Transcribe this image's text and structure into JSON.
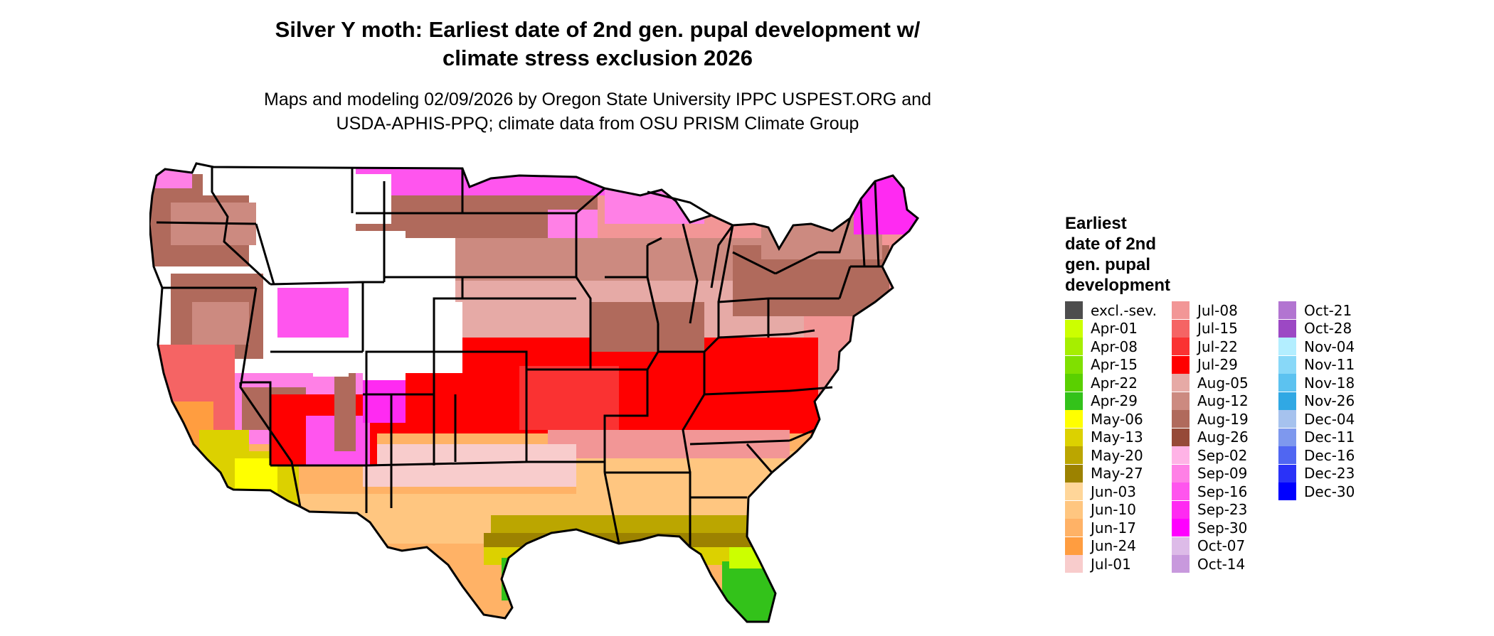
{
  "title": {
    "line1": "Silver Y moth: Earliest date of 2nd gen. pupal development w/",
    "line2": "climate stress exclusion 2026"
  },
  "subtitle": {
    "line1": "Maps and modeling 02/09/2026 by Oregon State University IPPC USPEST.ORG and",
    "line2": "USDA-APHIS-PPQ; climate data from OSU PRISM Climate Group"
  },
  "legend": {
    "title_lines": [
      "Earliest",
      "date of 2nd",
      "gen. pupal",
      "development"
    ],
    "columns": [
      [
        {
          "label": "excl.-sev.",
          "color": "#4d4d4d"
        },
        {
          "label": "Apr-01",
          "color": "#ccff00"
        },
        {
          "label": "Apr-08",
          "color": "#a6ee00"
        },
        {
          "label": "Apr-15",
          "color": "#80e000"
        },
        {
          "label": "Apr-22",
          "color": "#5ad000"
        },
        {
          "label": "Apr-29",
          "color": "#33c21a"
        },
        {
          "label": "May-06",
          "color": "#ffff00"
        },
        {
          "label": "May-13",
          "color": "#dcd100"
        },
        {
          "label": "May-20",
          "color": "#bba600"
        },
        {
          "label": "May-27",
          "color": "#9c8200"
        },
        {
          "label": "Jun-03",
          "color": "#ffd699"
        },
        {
          "label": "Jun-10",
          "color": "#ffc680"
        },
        {
          "label": "Jun-17",
          "color": "#ffb266"
        },
        {
          "label": "Jun-24",
          "color": "#ff9d40"
        },
        {
          "label": "Jul-01",
          "color": "#f8cccc"
        }
      ],
      [
        {
          "label": "Jul-08",
          "color": "#f29696"
        },
        {
          "label": "Jul-15",
          "color": "#f56464"
        },
        {
          "label": "Jul-22",
          "color": "#fa3232"
        },
        {
          "label": "Jul-29",
          "color": "#ff0000"
        },
        {
          "label": "Aug-05",
          "color": "#e6aaa6"
        },
        {
          "label": "Aug-12",
          "color": "#cc8a80"
        },
        {
          "label": "Aug-19",
          "color": "#b06a5c"
        },
        {
          "label": "Aug-26",
          "color": "#964a38"
        },
        {
          "label": "Sep-02",
          "color": "#ffb3e6"
        },
        {
          "label": "Sep-09",
          "color": "#ff80e6"
        },
        {
          "label": "Sep-16",
          "color": "#ff55ee"
        },
        {
          "label": "Sep-23",
          "color": "#ff2af2"
        },
        {
          "label": "Sep-30",
          "color": "#ff00ff"
        },
        {
          "label": "Oct-07",
          "color": "#ddbbe8"
        },
        {
          "label": "Oct-14",
          "color": "#c899dd"
        }
      ],
      [
        {
          "label": "Oct-21",
          "color": "#b274d1"
        },
        {
          "label": "Oct-28",
          "color": "#9c48c4"
        },
        {
          "label": "Nov-04",
          "color": "#b3eeff"
        },
        {
          "label": "Nov-11",
          "color": "#88d8f8"
        },
        {
          "label": "Nov-18",
          "color": "#5cc2f0"
        },
        {
          "label": "Nov-26",
          "color": "#30a8e4"
        },
        {
          "label": "Dec-04",
          "color": "#a6c2ee"
        },
        {
          "label": "Dec-11",
          "color": "#7e98ee"
        },
        {
          "label": "Dec-16",
          "color": "#5066f2"
        },
        {
          "label": "Dec-23",
          "color": "#2a32f8"
        },
        {
          "label": "Dec-30",
          "color": "#0000ff"
        }
      ]
    ]
  }
}
